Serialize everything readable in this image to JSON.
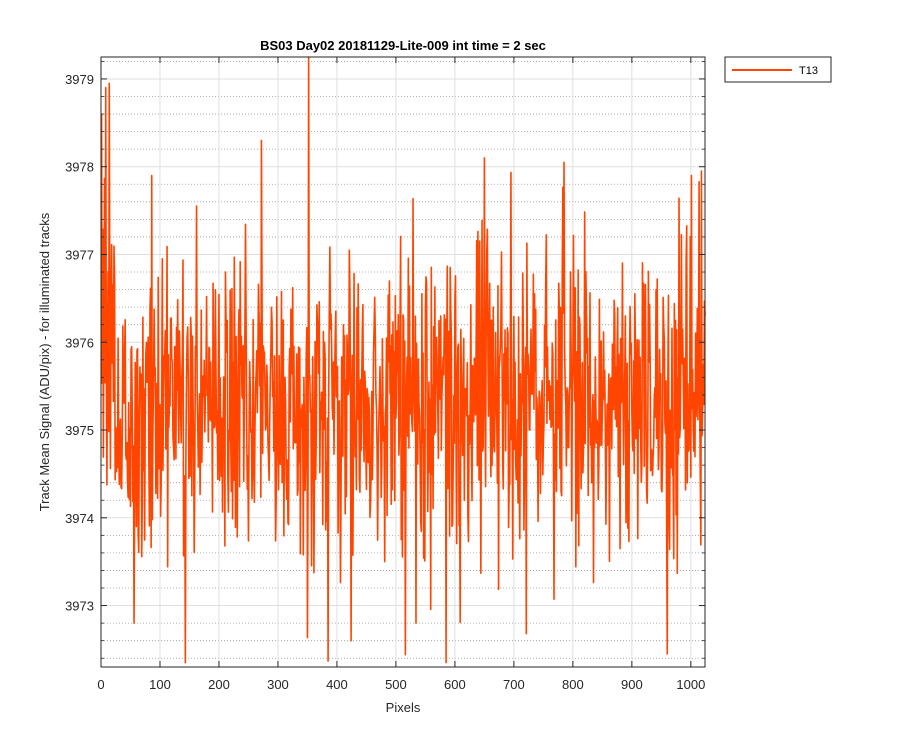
{
  "chart_data": {
    "type": "line",
    "title": "BS03 Day02 20181129-Lite-009 int time = 2 sec",
    "xlabel": "Pixels",
    "ylabel": "Track Mean Signal (ADU/pix) - for illuminated tracks",
    "xlim": [
      0,
      1024
    ],
    "ylim": [
      3972.3,
      3979.25
    ],
    "x_ticks": [
      0,
      100,
      200,
      300,
      400,
      500,
      600,
      700,
      800,
      900,
      1000
    ],
    "y_ticks": [
      3973,
      3974,
      3975,
      3976,
      3977,
      3978,
      3979
    ],
    "grid": true,
    "minor_grid_y": true,
    "legend_position": "outside-top-right",
    "series": [
      {
        "name": "T13",
        "color": "#ff4500",
        "x_start": 1,
        "x_step": 1,
        "count": 1024,
        "mean": 3975.3,
        "std_dev": 0.9,
        "notable_points": [
          {
            "x": 1,
            "y": 3978.6
          },
          {
            "x": 8,
            "y": 3978.9
          },
          {
            "x": 14,
            "y": 3978.95
          },
          {
            "x": 56,
            "y": 3972.8
          },
          {
            "x": 86,
            "y": 3977.9
          },
          {
            "x": 143,
            "y": 3972.35
          },
          {
            "x": 272,
            "y": 3978.3
          },
          {
            "x": 352,
            "y": 3979.25
          },
          {
            "x": 424,
            "y": 3972.6
          },
          {
            "x": 534,
            "y": 3972.8
          },
          {
            "x": 585,
            "y": 3972.35
          },
          {
            "x": 650,
            "y": 3978.1
          },
          {
            "x": 785,
            "y": 3978.05
          },
          {
            "x": 960,
            "y": 3972.45
          },
          {
            "x": 1001,
            "y": 3977.9
          },
          {
            "x": 1018,
            "y": 3977.95
          },
          {
            "x": 1024,
            "y": 3976.3
          }
        ]
      }
    ]
  }
}
